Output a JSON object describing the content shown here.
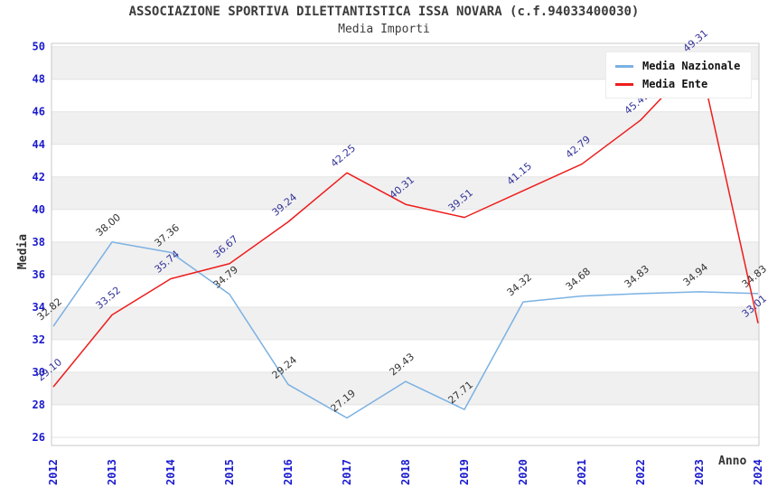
{
  "header": {
    "title": "ASSOCIAZIONE SPORTIVA DILETTANTISTICA ISSA NOVARA (c.f.94033400030)",
    "subtitle": "Media Importi"
  },
  "legend": {
    "items": [
      {
        "label": "Media Nazionale",
        "color": "#7bb1e3"
      },
      {
        "label": "Media Ente",
        "color": "#ee1c1c"
      }
    ]
  },
  "colors": {
    "tick_label": "#1a1acd",
    "grid_line": "#e3e3e3",
    "band_gray": "#f0f0f0",
    "plot_border": "#c9c9c9",
    "nazionale_line": "#7bb1e3",
    "nazionale_label": "#333333",
    "ente_line": "#ee1c1c",
    "ente_label": "#333399"
  },
  "chart_data": {
    "type": "line",
    "title": "ASSOCIAZIONE SPORTIVA DILETTANTISTICA ISSA NOVARA (c.f.94033400030)",
    "subtitle": "Media Importi",
    "xlabel": "Anno",
    "ylabel": "Media",
    "x": [
      "2012",
      "2013",
      "2014",
      "2015",
      "2016",
      "2017",
      "2018",
      "2019",
      "2020",
      "2021",
      "2022",
      "2023",
      "2024"
    ],
    "series": [
      {
        "name": "Media Nazionale",
        "color": "#7bb1e3",
        "label_color": "#333333",
        "values": [
          32.82,
          38.0,
          37.36,
          34.79,
          29.24,
          27.19,
          29.43,
          27.71,
          34.32,
          34.68,
          34.83,
          34.94,
          34.83
        ]
      },
      {
        "name": "Media Ente",
        "color": "#ee1c1c",
        "label_color": "#333399",
        "values": [
          29.1,
          33.52,
          35.74,
          36.67,
          39.24,
          42.25,
          40.31,
          39.51,
          41.15,
          42.79,
          45.49,
          49.31,
          33.01
        ]
      }
    ],
    "ylim": [
      26,
      50
    ],
    "y_ticks": [
      26,
      28,
      30,
      32,
      34,
      36,
      38,
      40,
      42,
      44,
      46,
      48,
      50
    ],
    "grid": "horizontal gridlines with alternating gray bands",
    "legend_position": "top-right",
    "data_labels": "shown, rotated -40deg above each point"
  }
}
